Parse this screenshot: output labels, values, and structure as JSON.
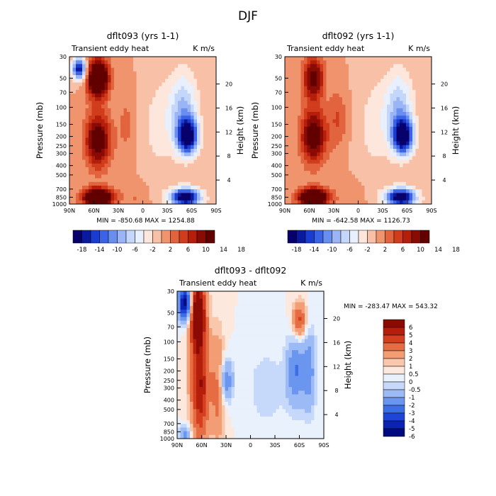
{
  "page_title": "DJF",
  "palettes": {
    "top": [
      "#08006b",
      "#0a1aa0",
      "#1a3cd0",
      "#3a63e8",
      "#6a8ef0",
      "#9ab4f5",
      "#c4d6fa",
      "#e8f0fd",
      "#fde6dc",
      "#f8c0a6",
      "#f0946e",
      "#e2643e",
      "#d13c1c",
      "#b51e0a",
      "#8a0a04",
      "#620000"
    ],
    "diff": [
      "#000a80",
      "#0a23b4",
      "#1f45d6",
      "#3c6ee6",
      "#6a96f0",
      "#9cbaf6",
      "#c6d9fb",
      "#e9f1fd",
      "#fde8dd",
      "#f9c7ac",
      "#f39d75",
      "#e66c43",
      "#d4401f",
      "#b61e0c",
      "#8b0a04"
    ]
  },
  "chart_data": [
    {
      "type": "heatmap",
      "title": "dflt093 (yrs 1-1)",
      "subtitle_left": "Transient eddy heat",
      "subtitle_right": "K m/s",
      "ylabel": "Pressure (mb)",
      "ylabel_right": "Height (km)",
      "x_ticks": [
        "90N",
        "60N",
        "30N",
        "0",
        "30S",
        "60S",
        "90S"
      ],
      "y_ticks": [
        "30",
        "50",
        "70",
        "100",
        "150",
        "200",
        "250",
        "300",
        "400",
        "500",
        "700",
        "850",
        "1000"
      ],
      "y_ticks_right": [
        "4",
        "8",
        "12",
        "16",
        "20"
      ],
      "stats": "MIN = -850.68   MAX = 1254.88",
      "colorbar_levels": [
        -18,
        -16,
        -14,
        -12,
        -10,
        -8,
        -6,
        -4,
        -2,
        0,
        2,
        4,
        6,
        8,
        10,
        12,
        14,
        16,
        18
      ],
      "colorbar_labels": [
        "-18",
        "-14",
        "-10",
        "-6",
        "-2",
        "2",
        "6",
        "10",
        "14",
        "18"
      ],
      "features": [
        {
          "lat": 55,
          "p": 850,
          "value": 20,
          "sx": 13,
          "sy": 0.15
        },
        {
          "lat": 55,
          "p": 50,
          "value": 20,
          "sx": 9,
          "sy": 0.32
        },
        {
          "lat": 55,
          "p": 220,
          "value": 13,
          "sx": 11,
          "sy": 0.45
        },
        {
          "lat": 78,
          "p": 40,
          "value": -18,
          "sx": 6,
          "sy": 0.18
        },
        {
          "lat": 20,
          "p": 150,
          "value": 2.5,
          "sx": 8,
          "sy": 0.6
        },
        {
          "lat": -55,
          "p": 200,
          "value": -20,
          "sx": 9,
          "sy": 0.3
        },
        {
          "lat": -52,
          "p": 850,
          "value": -22,
          "sx": 13,
          "sy": 0.15
        },
        {
          "lat": -50,
          "p": 100,
          "value": -8,
          "sx": 12,
          "sy": 0.6
        },
        {
          "lat": -20,
          "p": 150,
          "value": -3,
          "sx": 15,
          "sy": 0.8
        },
        {
          "lat": 10,
          "p": 850,
          "value": 2,
          "sx": 10,
          "sy": 0.25
        }
      ]
    },
    {
      "type": "heatmap",
      "title": "dflt092 (yrs 1-1)",
      "subtitle_left": "Transient eddy heat",
      "subtitle_right": "K m/s",
      "ylabel": "Pressure (mb)",
      "ylabel_right": "Height (km)",
      "x_ticks": [
        "90N",
        "60N",
        "30N",
        "0",
        "30S",
        "60S",
        "90S"
      ],
      "y_ticks": [
        "30",
        "50",
        "70",
        "100",
        "150",
        "200",
        "250",
        "300",
        "400",
        "500",
        "700",
        "850",
        "1000"
      ],
      "y_ticks_right": [
        "4",
        "8",
        "12",
        "16",
        "20"
      ],
      "stats": "MIN = -642.58   MAX = 1126.73",
      "colorbar_levels": [
        -18,
        -16,
        -14,
        -12,
        -10,
        -8,
        -6,
        -4,
        -2,
        0,
        2,
        4,
        6,
        8,
        10,
        12,
        14,
        16,
        18
      ],
      "colorbar_labels": [
        "-18",
        "-14",
        "-10",
        "-6",
        "-2",
        "2",
        "6",
        "10",
        "14",
        "18"
      ],
      "features": [
        {
          "lat": 55,
          "p": 850,
          "value": 20,
          "sx": 13,
          "sy": 0.15
        },
        {
          "lat": 55,
          "p": 50,
          "value": 12,
          "sx": 9,
          "sy": 0.35
        },
        {
          "lat": 55,
          "p": 200,
          "value": 13,
          "sx": 11,
          "sy": 0.45
        },
        {
          "lat": 25,
          "p": 130,
          "value": 4,
          "sx": 8,
          "sy": 0.5
        },
        {
          "lat": -55,
          "p": 200,
          "value": -20,
          "sx": 9,
          "sy": 0.3
        },
        {
          "lat": -52,
          "p": 850,
          "value": -22,
          "sx": 13,
          "sy": 0.15
        },
        {
          "lat": -50,
          "p": 100,
          "value": -8,
          "sx": 12,
          "sy": 0.6
        },
        {
          "lat": -20,
          "p": 150,
          "value": -3,
          "sx": 15,
          "sy": 0.8
        },
        {
          "lat": 10,
          "p": 850,
          "value": 2,
          "sx": 10,
          "sy": 0.25
        }
      ]
    },
    {
      "type": "heatmap",
      "title": "dflt093 - dflt092",
      "subtitle_left": "Transient eddy heat",
      "subtitle_right": "K m/s",
      "ylabel": "Pressure (mb)",
      "ylabel_right": "Height (km)",
      "x_ticks": [
        "90N",
        "60N",
        "30N",
        "0",
        "30S",
        "60S",
        "90S"
      ],
      "y_ticks": [
        "30",
        "50",
        "70",
        "100",
        "150",
        "200",
        "250",
        "300",
        "400",
        "500",
        "700",
        "850",
        "1000"
      ],
      "y_ticks_right": [
        "4",
        "8",
        "12",
        "16",
        "20"
      ],
      "stats": "MIN = -283.47   MAX = 543.32",
      "colorbar_levels": [
        -6,
        -5,
        -4,
        -3,
        -2,
        -1,
        -0.5,
        0,
        0.5,
        1,
        2,
        3,
        4,
        5,
        6
      ],
      "colorbar_labels": [
        "6",
        "5",
        "4",
        "3",
        "2",
        "1",
        "0.5",
        "0",
        "-0.5",
        "-1",
        "-2",
        "-3",
        "-4",
        "-5",
        "-6"
      ],
      "features": [
        {
          "lat": 80,
          "p": 40,
          "value": -7,
          "sx": 6,
          "sy": 0.3
        },
        {
          "lat": 65,
          "p": 50,
          "value": 7,
          "sx": 7,
          "sy": 0.6
        },
        {
          "lat": 62,
          "p": 300,
          "value": 5,
          "sx": 8,
          "sy": 0.9
        },
        {
          "lat": 40,
          "p": 300,
          "value": 2.5,
          "sx": 6,
          "sy": 0.9
        },
        {
          "lat": 30,
          "p": 250,
          "value": -3,
          "sx": 6,
          "sy": 0.35
        },
        {
          "lat": -60,
          "p": 60,
          "value": 3.5,
          "sx": 6,
          "sy": 0.3
        },
        {
          "lat": -55,
          "p": 200,
          "value": -3,
          "sx": 8,
          "sy": 0.6
        },
        {
          "lat": -72,
          "p": 200,
          "value": -2.5,
          "sx": 6,
          "sy": 0.7
        },
        {
          "lat": -20,
          "p": 300,
          "value": -1,
          "sx": 15,
          "sy": 0.6
        },
        {
          "lat": 80,
          "p": 900,
          "value": -2.5,
          "sx": 5,
          "sy": 0.15
        }
      ]
    }
  ]
}
